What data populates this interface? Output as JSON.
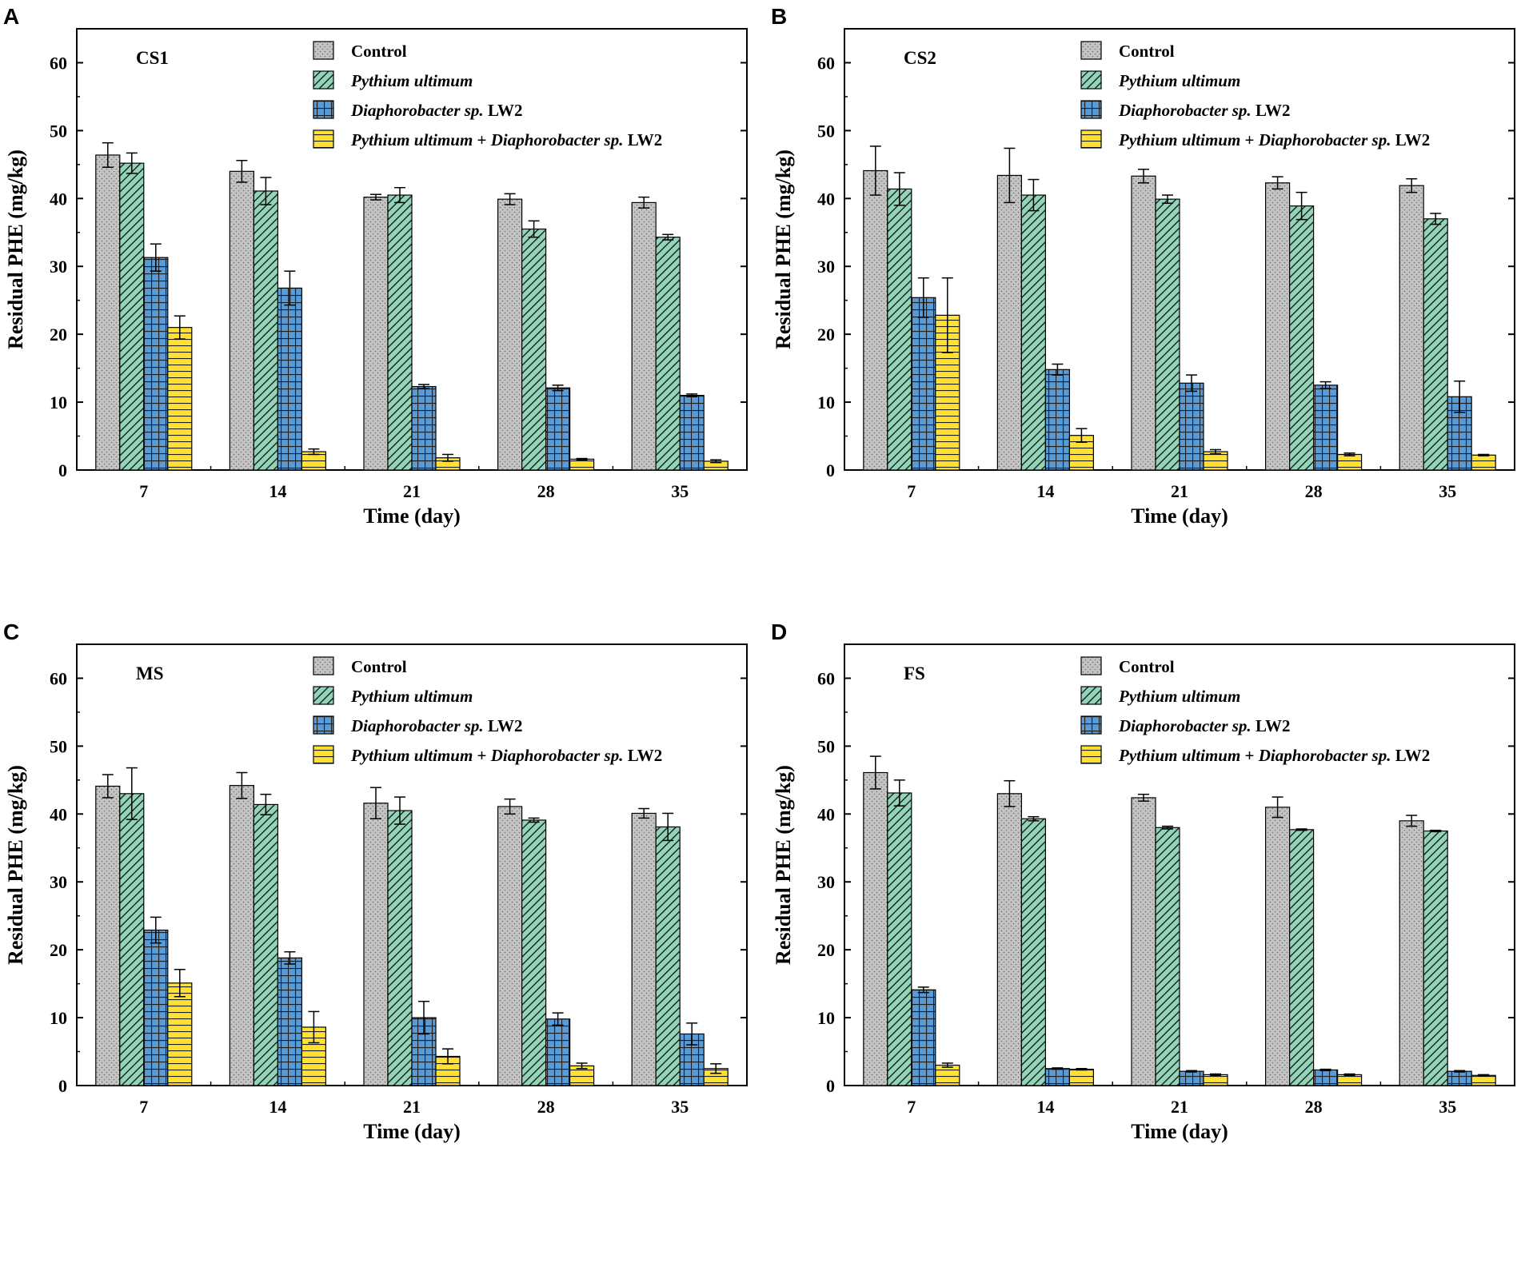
{
  "legend": {
    "series_labels": [
      {
        "parts": [
          {
            "text": "Control",
            "italic": false
          }
        ]
      },
      {
        "parts": [
          {
            "text": "Pythium ultimum",
            "italic": true
          }
        ]
      },
      {
        "parts": [
          {
            "text": "Diaphorobacter sp.",
            "italic": true
          },
          {
            "text": " LW2",
            "italic": false
          }
        ]
      },
      {
        "parts": [
          {
            "text": "Pythium ultimum",
            "italic": true
          },
          {
            "text": " + ",
            "italic": false
          },
          {
            "text": "Diaphorobacter sp.",
            "italic": true
          },
          {
            "text": " LW2",
            "italic": false
          }
        ]
      }
    ]
  },
  "colors": {
    "control": "#c4c4c4",
    "pythium": "#92d4b8",
    "diaphorobacter": "#5b9bd5",
    "combined": "#ffe033",
    "ink": "#000000"
  },
  "chart_data": [
    {
      "type": "bar",
      "panel": "A",
      "title": "CS1",
      "xlabel": "Time (day)",
      "ylabel": "Residual PHE (mg/kg)",
      "ylim": [
        0,
        65
      ],
      "yticks": [
        0,
        10,
        20,
        30,
        40,
        50,
        60
      ],
      "categories": [
        "7",
        "14",
        "21",
        "28",
        "35"
      ],
      "series": [
        {
          "name": "Control",
          "values": [
            46.4,
            44.0,
            40.2,
            39.9,
            39.4
          ],
          "errors": [
            1.8,
            1.6,
            0.4,
            0.8,
            0.8
          ]
        },
        {
          "name": "Pythium ultimum",
          "values": [
            45.2,
            41.1,
            40.5,
            35.5,
            34.3
          ],
          "errors": [
            1.5,
            2.0,
            1.1,
            1.2,
            0.4
          ]
        },
        {
          "name": "Diaphorobacter sp. LW2",
          "values": [
            31.3,
            26.8,
            12.3,
            12.1,
            11.0
          ],
          "errors": [
            2.0,
            2.5,
            0.3,
            0.4,
            0.2
          ]
        },
        {
          "name": "Pythium ultimum + Diaphorobacter sp. LW2",
          "values": [
            21.0,
            2.7,
            1.8,
            1.6,
            1.3
          ],
          "errors": [
            1.7,
            0.4,
            0.5,
            0.1,
            0.2
          ]
        }
      ]
    },
    {
      "type": "bar",
      "panel": "B",
      "title": "CS2",
      "xlabel": "Time (day)",
      "ylabel": "Residual PHE (mg/kg)",
      "ylim": [
        0,
        65
      ],
      "yticks": [
        0,
        10,
        20,
        30,
        40,
        50,
        60
      ],
      "categories": [
        "7",
        "14",
        "21",
        "28",
        "35"
      ],
      "series": [
        {
          "name": "Control",
          "values": [
            44.1,
            43.4,
            43.3,
            42.3,
            41.9
          ],
          "errors": [
            3.6,
            4.0,
            1.0,
            0.9,
            1.0
          ]
        },
        {
          "name": "Pythium ultimum",
          "values": [
            41.4,
            40.5,
            39.9,
            38.9,
            37.0
          ],
          "errors": [
            2.4,
            2.3,
            0.6,
            2.0,
            0.8
          ]
        },
        {
          "name": "Diaphorobacter sp. LW2",
          "values": [
            25.4,
            14.8,
            12.8,
            12.5,
            10.8
          ],
          "errors": [
            2.9,
            0.8,
            1.2,
            0.5,
            2.3
          ]
        },
        {
          "name": "Pythium ultimum + Diaphorobacter sp. LW2",
          "values": [
            22.8,
            5.1,
            2.7,
            2.3,
            2.2
          ],
          "errors": [
            5.5,
            1.0,
            0.3,
            0.2,
            0.1
          ]
        }
      ]
    },
    {
      "type": "bar",
      "panel": "C",
      "title": "MS",
      "xlabel": "Time (day)",
      "ylabel": "Residual PHE (mg/kg)",
      "ylim": [
        0,
        65
      ],
      "yticks": [
        0,
        10,
        20,
        30,
        40,
        50,
        60
      ],
      "categories": [
        "7",
        "14",
        "21",
        "28",
        "35"
      ],
      "series": [
        {
          "name": "Control",
          "values": [
            44.1,
            44.2,
            41.6,
            41.1,
            40.1
          ],
          "errors": [
            1.7,
            1.9,
            2.3,
            1.1,
            0.7
          ]
        },
        {
          "name": "Pythium ultimum",
          "values": [
            43.0,
            41.4,
            40.5,
            39.1,
            38.1
          ],
          "errors": [
            3.8,
            1.5,
            2.0,
            0.3,
            2.0
          ]
        },
        {
          "name": "Diaphorobacter sp. LW2",
          "values": [
            22.9,
            18.8,
            10.0,
            9.8,
            7.6
          ],
          "errors": [
            1.9,
            0.9,
            2.4,
            0.9,
            1.6
          ]
        },
        {
          "name": "Pythium ultimum + Diaphorobacter sp. LW2",
          "values": [
            15.1,
            8.6,
            4.3,
            2.9,
            2.5
          ],
          "errors": [
            2.0,
            2.3,
            1.1,
            0.4,
            0.7
          ]
        }
      ]
    },
    {
      "type": "bar",
      "panel": "D",
      "title": "FS",
      "xlabel": "Time (day)",
      "ylabel": "Residual PHE (mg/kg)",
      "ylim": [
        0,
        65
      ],
      "yticks": [
        0,
        10,
        20,
        30,
        40,
        50,
        60
      ],
      "categories": [
        "7",
        "14",
        "21",
        "28",
        "35"
      ],
      "series": [
        {
          "name": "Control",
          "values": [
            46.1,
            43.0,
            42.4,
            41.0,
            39.0
          ],
          "errors": [
            2.4,
            1.9,
            0.5,
            1.5,
            0.8
          ]
        },
        {
          "name": "Pythium ultimum",
          "values": [
            43.1,
            39.3,
            38.0,
            37.7,
            37.5
          ],
          "errors": [
            1.9,
            0.3,
            0.2,
            0.1,
            0.1
          ]
        },
        {
          "name": "Diaphorobacter sp. LW2",
          "values": [
            14.1,
            2.5,
            2.1,
            2.3,
            2.1
          ],
          "errors": [
            0.4,
            0.1,
            0.1,
            0.1,
            0.1
          ]
        },
        {
          "name": "Pythium ultimum + Diaphorobacter sp. LW2",
          "values": [
            3.0,
            2.4,
            1.6,
            1.6,
            1.5
          ],
          "errors": [
            0.3,
            0.1,
            0.1,
            0.1,
            0.1
          ]
        }
      ]
    }
  ]
}
